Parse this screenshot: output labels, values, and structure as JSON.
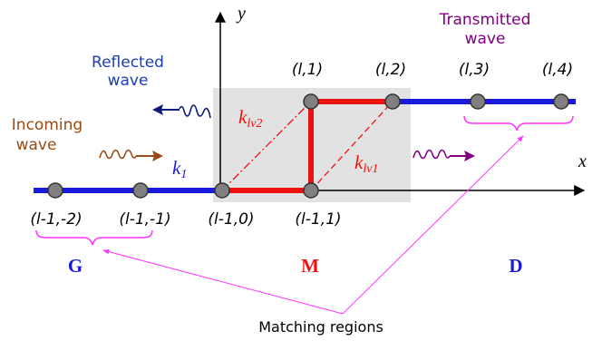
{
  "labels": {
    "y_axis": "y",
    "x_axis": "x",
    "reflected_line1": "Reflected",
    "reflected_line2": "wave",
    "transmitted_line1": "Transmitted",
    "transmitted_line2": "wave",
    "incoming_line1": "Incoming",
    "incoming_line2": "wave",
    "k1_base": "k",
    "k1_sub": "1",
    "klv2_base": "k",
    "klv2_sub": "lv2",
    "klv1_base": "k",
    "klv1_sub": "lv1",
    "region_g": "G",
    "region_m": "M",
    "region_d": "D",
    "matching_regions": "Matching regions"
  },
  "nodes_top": [
    "(l,1)",
    "(l,2)",
    "(l,3)",
    "(l,4)"
  ],
  "nodes_bottom": [
    "(l-1,-2)",
    "(l-1,-1)",
    "(l-1,0)",
    "(l-1,1)"
  ],
  "colors": {
    "lead_blue": "#1a1adc",
    "scatter_red": "#ee1111",
    "reflected_navy": "#0d1a7a",
    "reflected_text": "#1b3fb0",
    "incoming_brown": "#9c4a12",
    "transmitted_purple": "#800080",
    "brace_magenta": "#ff33ff",
    "region_gray": "#e2e2e2",
    "node_fill": "#808080"
  }
}
